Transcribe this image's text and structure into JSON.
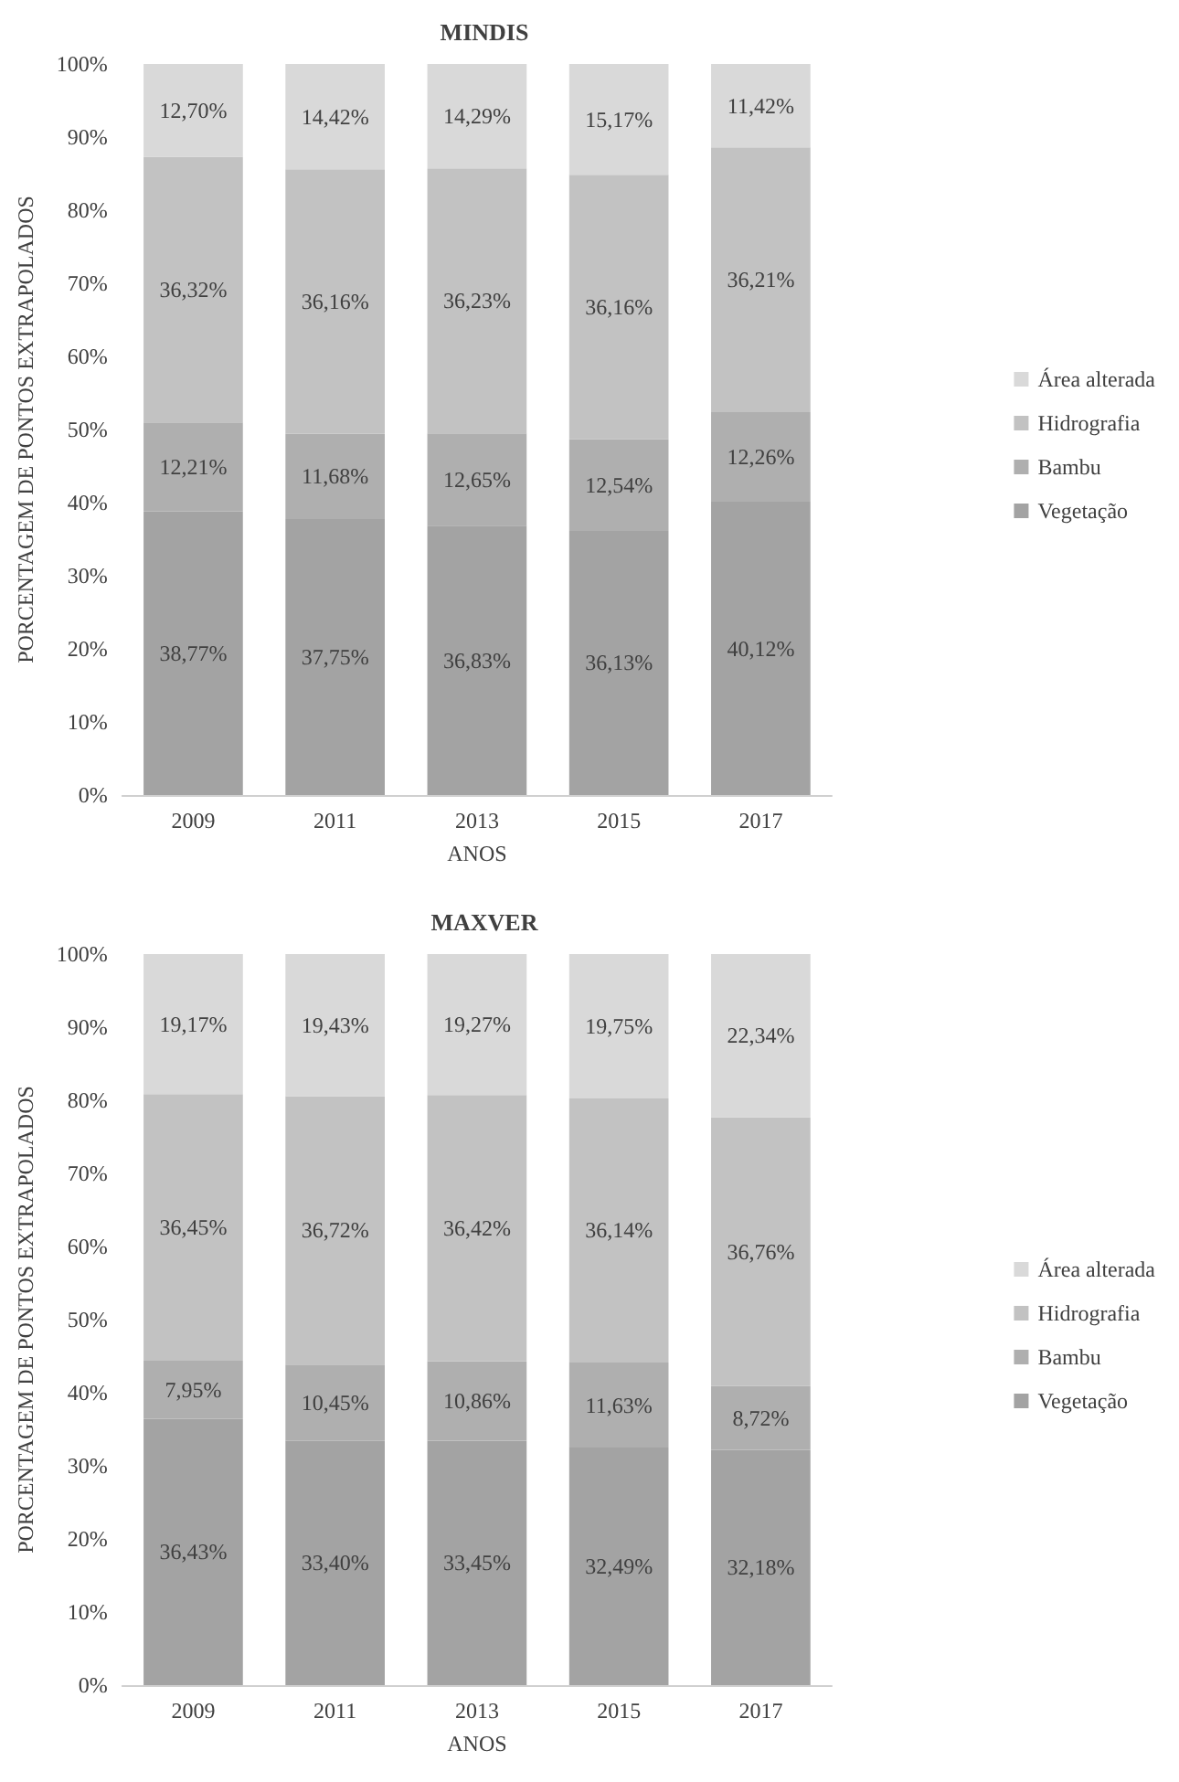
{
  "chart_data": [
    {
      "type": "bar",
      "title": "MINDIS",
      "xlabel": "ANOS",
      "ylabel": "PORCENTAGEM DE PONTOS EXTRAPOLADOS",
      "stacked": true,
      "legend": "right",
      "categories": [
        "2009",
        "2011",
        "2013",
        "2015",
        "2017"
      ],
      "ylim": [
        0,
        100
      ],
      "yticks": [
        {
          "value": 0,
          "label": "0%"
        },
        {
          "value": 10,
          "label": "10%"
        },
        {
          "value": 20,
          "label": "20%"
        },
        {
          "value": 30,
          "label": "30%"
        },
        {
          "value": 40,
          "label": "40%"
        },
        {
          "value": 50,
          "label": "50%"
        },
        {
          "value": 60,
          "label": "60%"
        },
        {
          "value": 70,
          "label": "70%"
        },
        {
          "value": 80,
          "label": "80%"
        },
        {
          "value": 90,
          "label": "90%"
        },
        {
          "value": 100,
          "label": "100%"
        }
      ],
      "series": [
        {
          "name": "Vegetação",
          "color": "#a3a3a3",
          "values": [
            38.77,
            37.75,
            36.83,
            36.13,
            40.12
          ],
          "value_labels": [
            "38,77%",
            "37,75%",
            "36,83%",
            "36,13%",
            "40,12%"
          ]
        },
        {
          "name": "Bambu",
          "color": "#afafaf",
          "values": [
            12.21,
            11.68,
            12.65,
            12.54,
            12.26
          ],
          "value_labels": [
            "12,21%",
            "11,68%",
            "12,65%",
            "12,54%",
            "12,26%"
          ]
        },
        {
          "name": "Hidrografia",
          "color": "#c2c2c2",
          "values": [
            36.32,
            36.16,
            36.23,
            36.16,
            36.21
          ],
          "value_labels": [
            "36,32%",
            "36,16%",
            "36,23%",
            "36,16%",
            "36,21%"
          ]
        },
        {
          "name": "Área alterada",
          "color": "#d9d9d9",
          "values": [
            12.7,
            14.42,
            14.29,
            15.17,
            11.42
          ],
          "value_labels": [
            "12,70%",
            "14,42%",
            "14,29%",
            "15,17%",
            "11,42%"
          ]
        }
      ]
    },
    {
      "type": "bar",
      "title": "MAXVER",
      "xlabel": "ANOS",
      "ylabel": "PORCENTAGEM DE PONTOS EXTRAPOLADOS",
      "stacked": true,
      "legend": "right",
      "categories": [
        "2009",
        "2011",
        "2013",
        "2015",
        "2017"
      ],
      "ylim": [
        0,
        100
      ],
      "yticks": [
        {
          "value": 0,
          "label": "0%"
        },
        {
          "value": 10,
          "label": "10%"
        },
        {
          "value": 20,
          "label": "20%"
        },
        {
          "value": 30,
          "label": "30%"
        },
        {
          "value": 40,
          "label": "40%"
        },
        {
          "value": 50,
          "label": "50%"
        },
        {
          "value": 60,
          "label": "60%"
        },
        {
          "value": 70,
          "label": "70%"
        },
        {
          "value": 80,
          "label": "80%"
        },
        {
          "value": 90,
          "label": "90%"
        },
        {
          "value": 100,
          "label": "100%"
        }
      ],
      "series": [
        {
          "name": "Vegetação",
          "color": "#a3a3a3",
          "values": [
            36.43,
            33.4,
            33.45,
            32.49,
            32.18
          ],
          "value_labels": [
            "36,43%",
            "33,40%",
            "33,45%",
            "32,49%",
            "32,18%"
          ]
        },
        {
          "name": "Bambu",
          "color": "#afafaf",
          "values": [
            7.95,
            10.45,
            10.86,
            11.63,
            8.72
          ],
          "value_labels": [
            "7,95%",
            "10,45%",
            "10,86%",
            "11,63%",
            "8,72%"
          ]
        },
        {
          "name": "Hidrografia",
          "color": "#c2c2c2",
          "values": [
            36.45,
            36.72,
            36.42,
            36.14,
            36.76
          ],
          "value_labels": [
            "36,45%",
            "36,72%",
            "36,42%",
            "36,14%",
            "36,76%"
          ]
        },
        {
          "name": "Área alterada",
          "color": "#d9d9d9",
          "values": [
            19.17,
            19.43,
            19.27,
            19.75,
            22.34
          ],
          "value_labels": [
            "19,17%",
            "19,43%",
            "19,27%",
            "19,75%",
            "22,34%"
          ]
        }
      ]
    }
  ]
}
